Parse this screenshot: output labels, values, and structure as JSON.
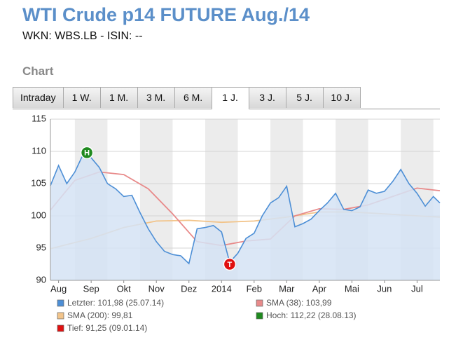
{
  "header": {
    "title": "WTI Crude p14 FUTURE Aug./14",
    "subtitle": "WKN: WBS.LB - ISIN: --",
    "section": "Chart"
  },
  "tabs": {
    "items": [
      "Intraday",
      "1 W.",
      "1 M.",
      "3 M.",
      "6 M.",
      "1 J.",
      "3 J.",
      "5 J.",
      "10 J."
    ],
    "active": 5
  },
  "chart_data": {
    "type": "line",
    "grid": true,
    "xlim": [
      -0.25,
      11.7
    ],
    "ylim": [
      90,
      115
    ],
    "yticks": [
      90,
      95,
      100,
      105,
      110,
      115
    ],
    "xticks": [
      {
        "value": 0,
        "label": "Aug"
      },
      {
        "value": 1,
        "label": "Sep"
      },
      {
        "value": 2,
        "label": "Okt"
      },
      {
        "value": 3,
        "label": "Nov"
      },
      {
        "value": 4,
        "label": "Dez"
      },
      {
        "value": 5,
        "label": "2014"
      },
      {
        "value": 6,
        "label": "Feb"
      },
      {
        "value": 7,
        "label": "Mar"
      },
      {
        "value": 8,
        "label": "Apr"
      },
      {
        "value": 9,
        "label": "Mai"
      },
      {
        "value": 10,
        "label": "Jun"
      },
      {
        "value": 11,
        "label": "Jul"
      }
    ],
    "series": [
      {
        "name": "Letzter: 101,98 (25.07.14)",
        "color": "#4d8fd6",
        "area": true,
        "x": [
          -0.25,
          0,
          0.25,
          0.5,
          0.75,
          1,
          1.25,
          1.5,
          1.75,
          2,
          2.25,
          2.5,
          2.75,
          3,
          3.25,
          3.5,
          3.75,
          4,
          4.25,
          4.5,
          4.75,
          5,
          5.25,
          5.5,
          5.75,
          6,
          6.25,
          6.5,
          6.75,
          7,
          7.25,
          7.5,
          7.75,
          8,
          8.25,
          8.5,
          8.75,
          9,
          9.25,
          9.5,
          9.75,
          10,
          10.25,
          10.5,
          10.75,
          11,
          11.25,
          11.5,
          11.7
        ],
        "values": [
          104.7,
          107.8,
          105,
          106.8,
          109.5,
          109,
          107.5,
          105,
          104.2,
          103,
          103.2,
          100.5,
          98,
          96,
          94.5,
          94,
          93.8,
          92.6,
          98,
          98.2,
          98.5,
          97.5,
          92.8,
          94.2,
          96.5,
          97.3,
          100,
          102,
          102.8,
          104.6,
          98.3,
          98.8,
          99.5,
          100.8,
          102,
          103.5,
          101,
          100.8,
          101.4,
          104,
          103.5,
          103.8,
          105.3,
          107.2,
          105,
          103.5,
          101.5,
          103,
          102
        ]
      },
      {
        "name": "SMA (38): 103,99",
        "color": "#e88a8a",
        "x": [
          -0.25,
          0.5,
          1.25,
          2,
          2.75,
          3.5,
          4.25,
          5,
          5.75,
          6.5,
          7.25,
          8,
          8.75,
          9.5,
          10.25,
          11,
          11.7
        ],
        "values": [
          100.9,
          105.5,
          106.8,
          106.4,
          104.2,
          100.3,
          96,
          95.4,
          96.1,
          96.4,
          100,
          101.1,
          101,
          101.7,
          103,
          104.3,
          103.9
        ]
      },
      {
        "name": "SMA (200): 99,81",
        "color": "#f2c48a",
        "x": [
          -0.25,
          1,
          2,
          3,
          4,
          5,
          6,
          7,
          8,
          9,
          10,
          11,
          11.7
        ],
        "values": [
          94.9,
          96.5,
          98.2,
          99.2,
          99.3,
          99,
          99.2,
          99.8,
          100.6,
          100.6,
          100.3,
          100,
          99.8
        ]
      }
    ],
    "markers": [
      {
        "label": "H",
        "name": "Hoch: 112,22 (28.08.13)",
        "color": "#1f8a1f",
        "x": 0.87,
        "y": 109.8
      },
      {
        "label": "T",
        "name": "Tief: 91,25 (09.01.14)",
        "color": "#e01010",
        "x": 5.25,
        "y": 92.5
      }
    ]
  }
}
